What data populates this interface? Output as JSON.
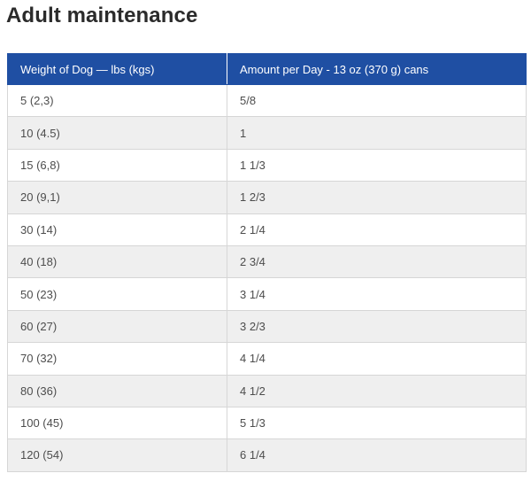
{
  "title": "Adult maintenance",
  "table": {
    "headers": [
      "Weight of Dog — lbs (kgs)",
      "Amount per Day - 13 oz (370 g) cans"
    ],
    "rows": [
      [
        "5 (2,3)",
        "5/8"
      ],
      [
        "10 (4.5)",
        "1"
      ],
      [
        "15 (6,8)",
        "1 1/3"
      ],
      [
        "20 (9,1)",
        "1 2/3"
      ],
      [
        "30 (14)",
        "2 1/4"
      ],
      [
        "40 (18)",
        "2 3/4"
      ],
      [
        "50 (23)",
        "3 1/4"
      ],
      [
        "60 (27)",
        "3 2/3"
      ],
      [
        "70 (32)",
        "4 1/4"
      ],
      [
        "80 (36)",
        "4 1/2"
      ],
      [
        "100 (45)",
        "5 1/3"
      ],
      [
        "120 (54)",
        "6 1/4"
      ]
    ]
  },
  "colors": {
    "header_bg": "#1f4fa3",
    "header_text": "#ffffff",
    "stripe_bg": "#efefef",
    "border": "#d6d6d6"
  }
}
